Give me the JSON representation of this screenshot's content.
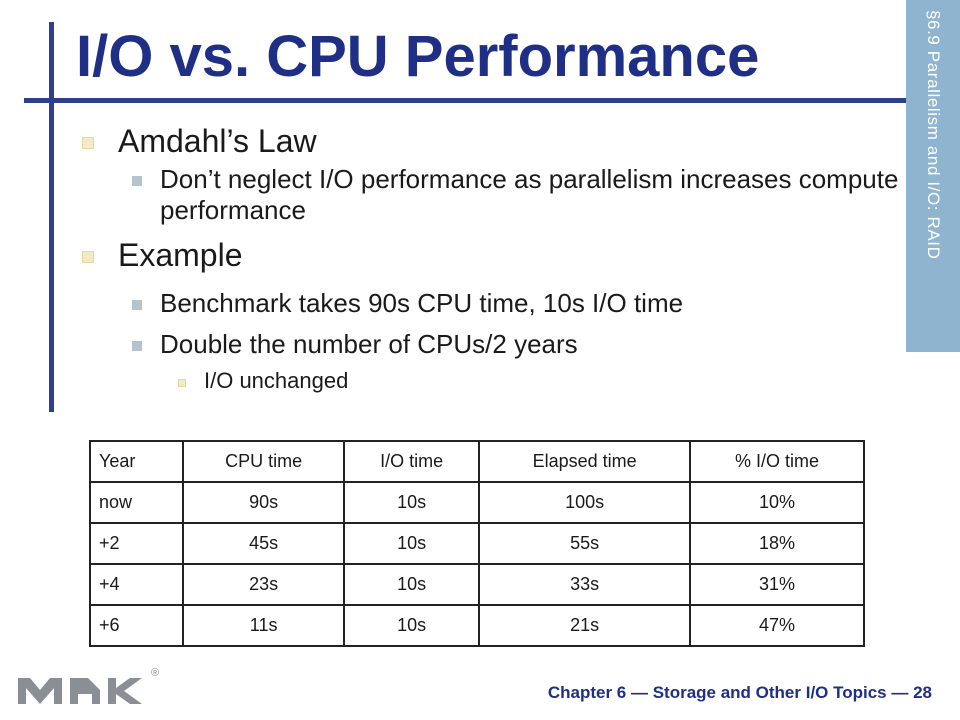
{
  "slide": {
    "title": "I/O vs. CPU Performance",
    "side_tab": "§6.9 Parallelism and I/O: RAID",
    "bullets": {
      "amdahl": "Amdahl’s Law",
      "amdahl_sub": "Don’t neglect I/O performance as parallelism increases compute performance",
      "example": "Example",
      "example_sub1": "Benchmark takes 90s CPU time, 10s I/O time",
      "example_sub2": "Double the number of CPUs/2 years",
      "example_sub2_sub": "I/O unchanged"
    },
    "table": {
      "headers": [
        "Year",
        "CPU time",
        "I/O time",
        "Elapsed time",
        "% I/O time"
      ],
      "rows": [
        [
          "now",
          "90s",
          "10s",
          "100s",
          "10%"
        ],
        [
          "+2",
          "45s",
          "10s",
          "55s",
          "18%"
        ],
        [
          "+4",
          "23s",
          "10s",
          "33s",
          "31%"
        ],
        [
          "+6",
          "11s",
          "10s",
          "21s",
          "47%"
        ]
      ]
    },
    "footer": "Chapter 6 — Storage and Other I/O Topics — 28",
    "logo": {
      "name": "mk-publisher-logo",
      "text": "MK",
      "registered_mark": "®"
    },
    "colors": {
      "title": "#1f2f86",
      "accent_bar": "#2e3f8c",
      "side_tab": "#8fb4cf"
    }
  }
}
